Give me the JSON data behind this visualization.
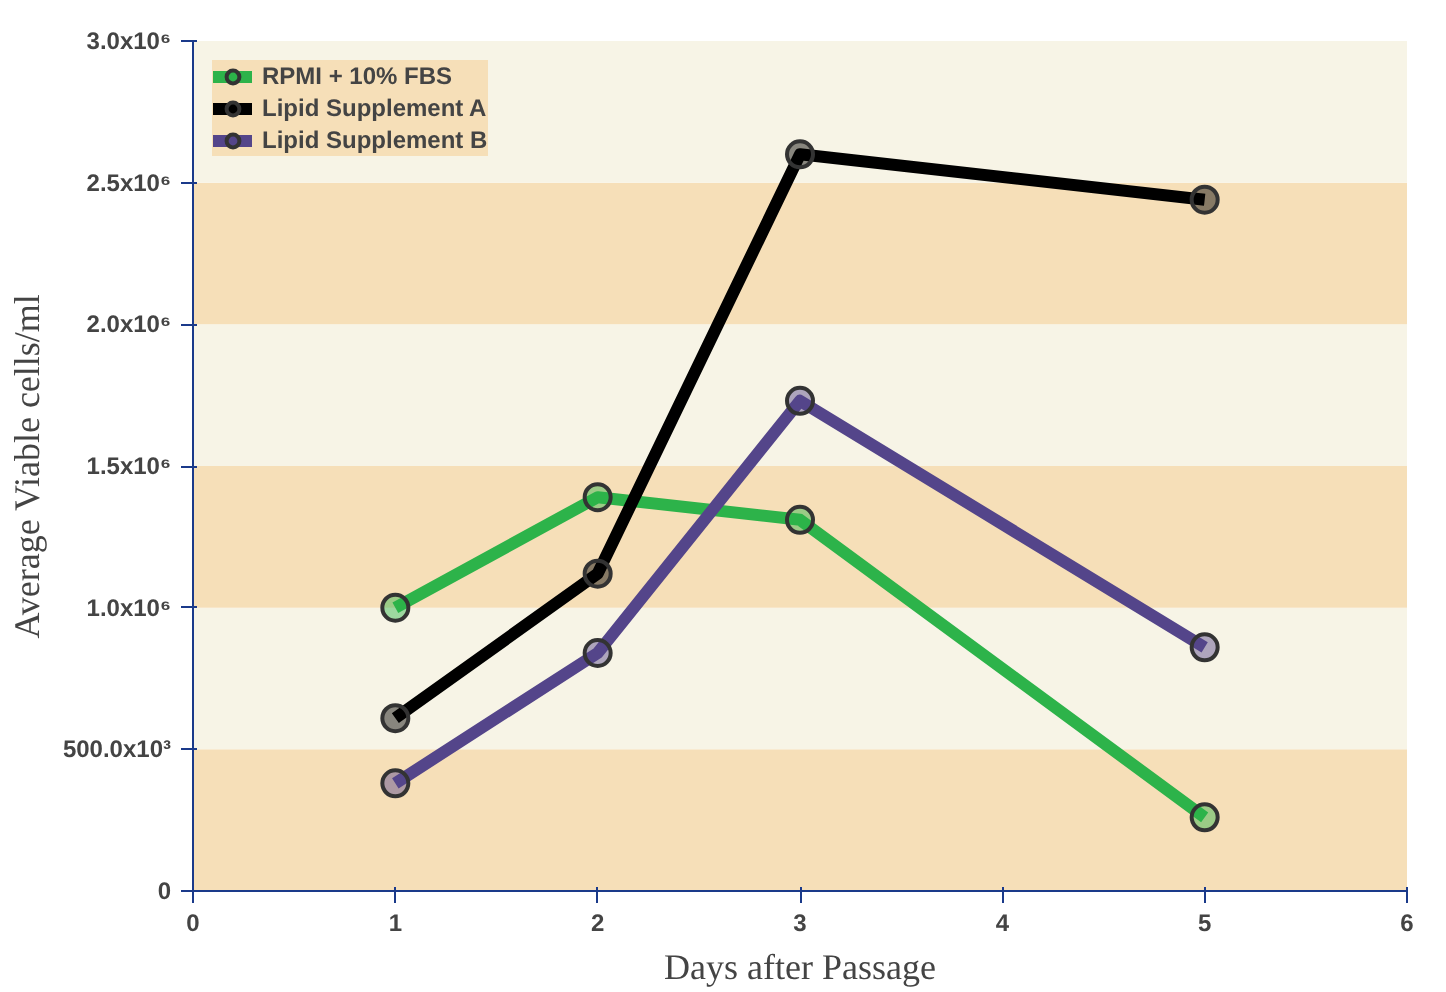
{
  "chart_data": {
    "type": "line",
    "xlabel": "Days after Passage",
    "ylabel": "Average Viable cells/ml",
    "xlim": [
      0,
      6
    ],
    "xticks": [
      0,
      1,
      2,
      3,
      4,
      5,
      6
    ],
    "ylim": [
      0,
      3000000
    ],
    "yticks": [
      {
        "value": 0,
        "label": "0"
      },
      {
        "value": 500000,
        "label": "500.0x10³"
      },
      {
        "value": 1000000,
        "label": "1.0x10⁶"
      },
      {
        "value": 1500000,
        "label": "1.5x10⁶"
      },
      {
        "value": 2000000,
        "label": "2.0x10⁶"
      },
      {
        "value": 2500000,
        "label": "2.5x10⁶"
      },
      {
        "value": 3000000,
        "label": "3.0x10⁶"
      }
    ],
    "x": [
      1,
      2,
      3,
      5
    ],
    "series": [
      {
        "name": "RPMI + 10% FBS",
        "color": "#2db34a",
        "values": [
          1000000,
          1390000,
          1310000,
          260000
        ]
      },
      {
        "name": "Lipid Supplement A",
        "color": "#000000",
        "values": [
          610000,
          1120000,
          2600000,
          2440000
        ]
      },
      {
        "name": "Lipid Supplement B",
        "color": "#54458a",
        "values": [
          380000,
          840000,
          1730000,
          860000
        ]
      }
    ],
    "bands": [
      {
        "axis": "y",
        "from": 0,
        "to": 500000,
        "color": "#f6dfb8"
      },
      {
        "axis": "y",
        "from": 500000,
        "to": 1000000,
        "color": "#f7f4e6"
      },
      {
        "axis": "y",
        "from": 1000000,
        "to": 1500000,
        "color": "#f6dfb8"
      },
      {
        "axis": "y",
        "from": 1500000,
        "to": 2000000,
        "color": "#f7f4e6"
      },
      {
        "axis": "y",
        "from": 2000000,
        "to": 2500000,
        "color": "#f6dfb8"
      },
      {
        "axis": "y",
        "from": 2500000,
        "to": 3000000,
        "color": "#f7f4e6"
      }
    ],
    "marker": "circle",
    "line_style": "solid",
    "legend": "top left"
  }
}
